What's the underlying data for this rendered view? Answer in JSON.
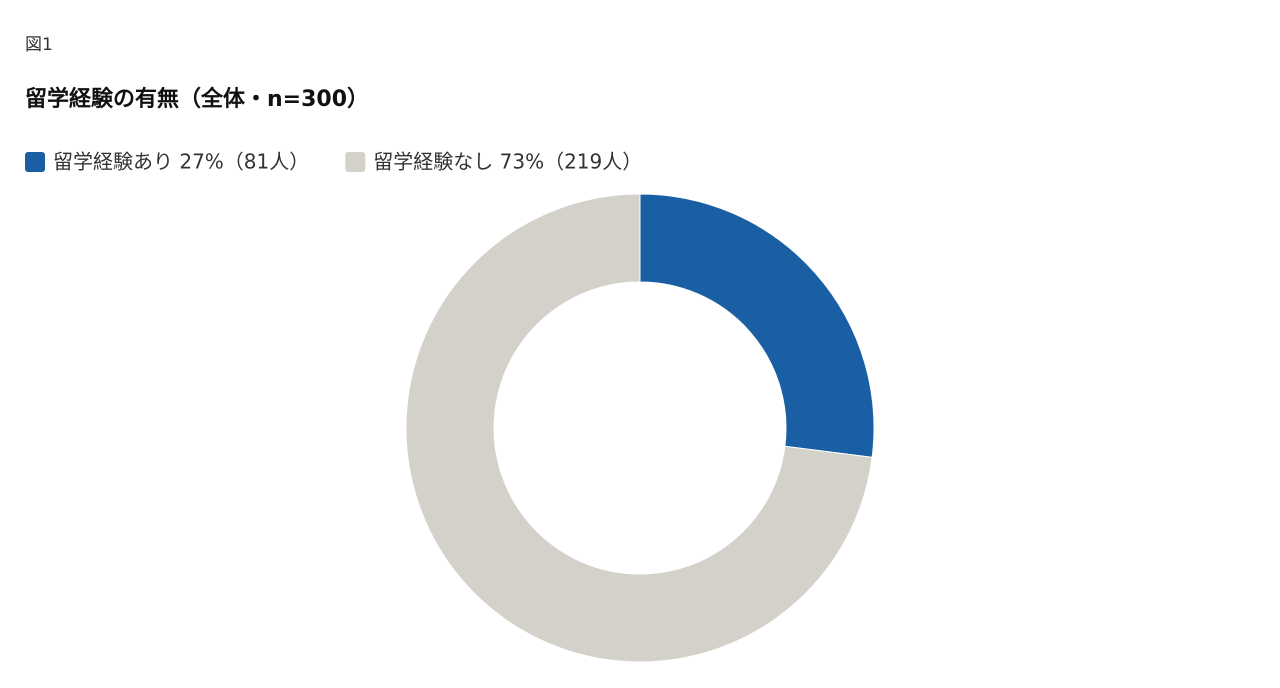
{
  "chart_data": {
    "type": "pie",
    "figure_label": "図1",
    "title": "留学経験の有無（全体・n=300）",
    "categories": [
      "留学経験あり 27%（81人）",
      "留学経験なし 73%（219人）"
    ],
    "values": [
      27,
      73
    ],
    "colors": [
      "#1a5fa3",
      "#d3d1c9"
    ],
    "donut": true
  }
}
